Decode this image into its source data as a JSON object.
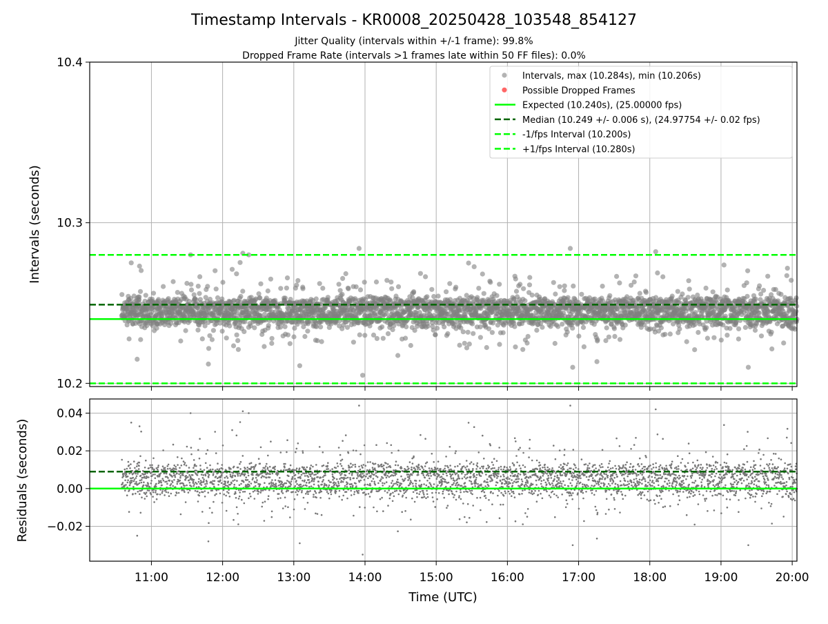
{
  "title": "Timestamp Intervals - KR0008_20250428_103548_854127",
  "subtitles": [
    "Jitter Quality (intervals within +/-1 frame): 99.8%",
    "Dropped Frame Rate (intervals >1 frames late within 50 FF files): 0.0%"
  ],
  "colors": {
    "points": "#808080",
    "dropped": "#ff0000",
    "expected": "#00ff00",
    "median": "#006400",
    "fps_band": "#00ff00",
    "grid": "#b0b0b0"
  },
  "chart_data": [
    {
      "type": "scatter",
      "name": "intervals",
      "ylabel": "Intervals (seconds)",
      "xlabel": "",
      "xlim": [
        "10:08",
        "20:04"
      ],
      "ylim": [
        10.198,
        10.4
      ],
      "yticks": [
        "10.2",
        "10.3",
        "10.4"
      ],
      "ytick_values": [
        10.2,
        10.3,
        10.4
      ],
      "xticks": [
        "11:00",
        "12:00",
        "13:00",
        "14:00",
        "15:00",
        "16:00",
        "17:00",
        "18:00",
        "19:00",
        "20:00"
      ],
      "grid": true,
      "legend_position": "top-right",
      "data_range": {
        "start": "10:35",
        "end": "20:04",
        "count": 3400
      },
      "point_sample": [
        {
          "t": "10:43",
          "y": 10.275
        },
        {
          "t": "10:50",
          "y": 10.273
        },
        {
          "t": "10:48",
          "y": 10.215
        },
        {
          "t": "11:33",
          "y": 10.28
        },
        {
          "t": "11:48",
          "y": 10.212
        },
        {
          "t": "12:17",
          "y": 10.281
        },
        {
          "t": "12:22",
          "y": 10.28
        },
        {
          "t": "13:05",
          "y": 10.211
        },
        {
          "t": "13:55",
          "y": 10.284
        },
        {
          "t": "13:58",
          "y": 10.205
        },
        {
          "t": "16:53",
          "y": 10.284
        },
        {
          "t": "18:05",
          "y": 10.282
        },
        {
          "t": "19:23",
          "y": 10.21
        },
        {
          "t": "16:55",
          "y": 10.21
        }
      ],
      "lines": [
        {
          "label": "Expected (10.240s), (25.00000 fps)",
          "y": 10.24,
          "style": "solid",
          "color": "#00ff00"
        },
        {
          "label": "Median (10.249 +/- 0.006 s), (24.97754 +/- 0.02 fps)",
          "y": 10.249,
          "style": "dashed",
          "color": "#006400"
        },
        {
          "label": "-1/fps Interval (10.200s)",
          "y": 10.2,
          "style": "dashed",
          "color": "#00ff00"
        },
        {
          "label": "+1/fps Interval (10.280s)",
          "y": 10.28,
          "style": "dashed",
          "color": "#00ff00"
        }
      ],
      "legend": [
        {
          "label": "Intervals, max (10.284s), min (10.206s)",
          "marker": "dot",
          "color": "#808080"
        },
        {
          "label": "Possible Dropped Frames",
          "marker": "dot",
          "color": "#ff0000"
        },
        {
          "label": "Expected (10.240s), (25.00000 fps)",
          "marker": "solid",
          "color": "#00ff00"
        },
        {
          "label": "Median (10.249 +/- 0.006 s), (24.97754 +/- 0.02 fps)",
          "marker": "dashed",
          "color": "#006400"
        },
        {
          "label": "-1/fps Interval (10.200s)",
          "marker": "dashed",
          "color": "#00ff00"
        },
        {
          "label": "+1/fps Interval (10.280s)",
          "marker": "dashed",
          "color": "#00ff00"
        }
      ]
    },
    {
      "type": "scatter",
      "name": "residuals",
      "ylabel": "Residuals (seconds)",
      "xlabel": "Time (UTC)",
      "xlim": [
        "10:08",
        "20:04"
      ],
      "ylim": [
        -0.0385,
        0.0475
      ],
      "yticks": [
        "−0.02",
        "0.00",
        "0.02",
        "0.04"
      ],
      "ytick_values": [
        -0.02,
        0.0,
        0.02,
        0.04
      ],
      "xticks": [
        "11:00",
        "12:00",
        "13:00",
        "14:00",
        "15:00",
        "16:00",
        "17:00",
        "18:00",
        "19:00",
        "20:00"
      ],
      "grid": true,
      "lines": [
        {
          "y": 0.0,
          "style": "solid",
          "color": "#00ff00"
        },
        {
          "y": 0.009,
          "style": "dashed",
          "color": "#006400"
        }
      ]
    }
  ]
}
